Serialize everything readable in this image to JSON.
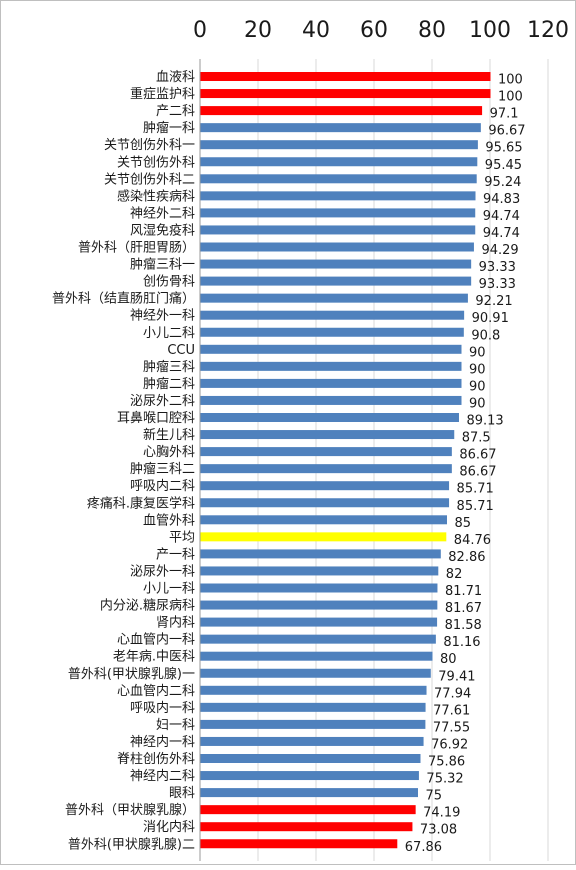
{
  "chart_data": {
    "type": "bar",
    "orientation": "horizontal",
    "axis_position": "top",
    "xlim": [
      0,
      120
    ],
    "ticks": [
      0,
      20,
      40,
      60,
      80,
      100,
      120
    ],
    "grid": true,
    "colors": {
      "high": "#ff0000",
      "normal": "#4f81bd",
      "average": "#ffff00",
      "low": "#ff0000"
    },
    "bars": [
      {
        "label": "血液科",
        "value": 100,
        "color": "high"
      },
      {
        "label": "重症监护科",
        "value": 100,
        "color": "high"
      },
      {
        "label": "产二科",
        "value": 97.1,
        "color": "high"
      },
      {
        "label": "肿瘤一科",
        "value": 96.67,
        "color": "normal"
      },
      {
        "label": "关节创伤外科一",
        "value": 95.65,
        "color": "normal"
      },
      {
        "label": "关节创伤外科",
        "value": 95.45,
        "color": "normal"
      },
      {
        "label": "关节创伤外科二",
        "value": 95.24,
        "color": "normal"
      },
      {
        "label": "感染性疾病科",
        "value": 94.83,
        "color": "normal"
      },
      {
        "label": "神经外二科",
        "value": 94.74,
        "color": "normal"
      },
      {
        "label": "风湿免疫科",
        "value": 94.74,
        "color": "normal"
      },
      {
        "label": "普外科（肝胆胃肠）",
        "value": 94.29,
        "color": "normal"
      },
      {
        "label": "肿瘤三科一",
        "value": 93.33,
        "color": "normal"
      },
      {
        "label": "创伤骨科",
        "value": 93.33,
        "color": "normal"
      },
      {
        "label": "普外科（结直肠肛门痛）",
        "value": 92.21,
        "color": "normal"
      },
      {
        "label": "神经外一科",
        "value": 90.91,
        "color": "normal"
      },
      {
        "label": "小儿二科",
        "value": 90.8,
        "color": "normal"
      },
      {
        "label": "CCU",
        "value": 90,
        "color": "normal"
      },
      {
        "label": "肿瘤三科",
        "value": 90,
        "color": "normal"
      },
      {
        "label": "肿瘤二科",
        "value": 90,
        "color": "normal"
      },
      {
        "label": "泌尿外二科",
        "value": 90,
        "color": "normal"
      },
      {
        "label": "耳鼻喉口腔科",
        "value": 89.13,
        "color": "normal"
      },
      {
        "label": "新生儿科",
        "value": 87.5,
        "color": "normal"
      },
      {
        "label": "心胸外科",
        "value": 86.67,
        "color": "normal"
      },
      {
        "label": "肿瘤三科二",
        "value": 86.67,
        "color": "normal"
      },
      {
        "label": "呼吸内二科",
        "value": 85.71,
        "color": "normal"
      },
      {
        "label": "疼痛科.康复医学科",
        "value": 85.71,
        "color": "normal"
      },
      {
        "label": "血管外科",
        "value": 85,
        "color": "normal"
      },
      {
        "label": "平均",
        "value": 84.76,
        "color": "average"
      },
      {
        "label": "产一科",
        "value": 82.86,
        "color": "normal"
      },
      {
        "label": "泌尿外一科",
        "value": 82,
        "color": "normal"
      },
      {
        "label": "小儿一科",
        "value": 81.71,
        "color": "normal"
      },
      {
        "label": "内分泌.糖尿病科",
        "value": 81.67,
        "color": "normal"
      },
      {
        "label": "肾内科",
        "value": 81.58,
        "color": "normal"
      },
      {
        "label": "心血管内一科",
        "value": 81.16,
        "color": "normal"
      },
      {
        "label": "老年病.中医科",
        "value": 80,
        "color": "normal"
      },
      {
        "label": "普外科(甲状腺乳腺)一",
        "value": 79.41,
        "color": "normal"
      },
      {
        "label": "心血管内二科",
        "value": 77.94,
        "color": "normal"
      },
      {
        "label": "呼吸内一科",
        "value": 77.61,
        "color": "normal"
      },
      {
        "label": "妇一科",
        "value": 77.55,
        "color": "normal"
      },
      {
        "label": "神经内一科",
        "value": 76.92,
        "color": "normal"
      },
      {
        "label": "脊柱创伤外科",
        "value": 75.86,
        "color": "normal"
      },
      {
        "label": "神经内二科",
        "value": 75.32,
        "color": "normal"
      },
      {
        "label": "眼科",
        "value": 75,
        "color": "normal"
      },
      {
        "label": "普外科（甲状腺乳腺）",
        "value": 74.19,
        "color": "low"
      },
      {
        "label": "消化内科",
        "value": 73.08,
        "color": "low"
      },
      {
        "label": "普外科(甲状腺乳腺)二",
        "value": 67.86,
        "color": "low"
      }
    ]
  }
}
